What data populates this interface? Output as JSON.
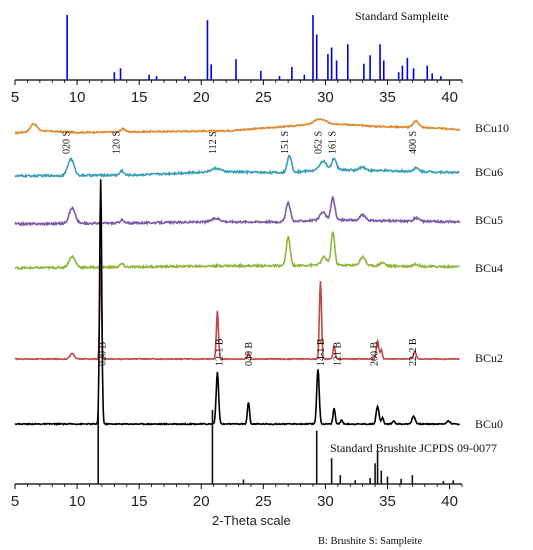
{
  "chart_data": {
    "type": "line",
    "xlabel": "2-Theta scale",
    "xlim": [
      5,
      41
    ],
    "ticks": [
      5,
      10,
      15,
      20,
      25,
      30,
      35,
      40
    ],
    "note": "B: Brushite S: Sampleite",
    "references": [
      {
        "name": "Standard Sampleite",
        "color": "#0000dd",
        "peaks": [
          {
            "x": 9.2,
            "h": 1.0
          },
          {
            "x": 13.0,
            "h": 0.12
          },
          {
            "x": 13.5,
            "h": 0.18
          },
          {
            "x": 15.8,
            "h": 0.08
          },
          {
            "x": 16.4,
            "h": 0.06
          },
          {
            "x": 18.7,
            "h": 0.06
          },
          {
            "x": 20.5,
            "h": 0.92
          },
          {
            "x": 20.8,
            "h": 0.24
          },
          {
            "x": 22.8,
            "h": 0.32
          },
          {
            "x": 24.8,
            "h": 0.14
          },
          {
            "x": 26.3,
            "h": 0.06
          },
          {
            "x": 27.3,
            "h": 0.2
          },
          {
            "x": 28.3,
            "h": 0.08
          },
          {
            "x": 29.0,
            "h": 1.0
          },
          {
            "x": 29.3,
            "h": 0.7
          },
          {
            "x": 30.2,
            "h": 0.4
          },
          {
            "x": 30.5,
            "h": 0.5
          },
          {
            "x": 30.9,
            "h": 0.3
          },
          {
            "x": 31.8,
            "h": 0.55
          },
          {
            "x": 33.1,
            "h": 0.25
          },
          {
            "x": 33.6,
            "h": 0.38
          },
          {
            "x": 34.4,
            "h": 0.55
          },
          {
            "x": 34.7,
            "h": 0.3
          },
          {
            "x": 35.9,
            "h": 0.12
          },
          {
            "x": 36.2,
            "h": 0.22
          },
          {
            "x": 36.6,
            "h": 0.34
          },
          {
            "x": 37.1,
            "h": 0.18
          },
          {
            "x": 38.2,
            "h": 0.22
          },
          {
            "x": 38.6,
            "h": 0.1
          },
          {
            "x": 39.3,
            "h": 0.06
          }
        ]
      },
      {
        "name": "Standard Brushite JCPDS 09-0077",
        "color": "#111111",
        "peaks": [
          {
            "x": 11.7,
            "h": 1.0
          },
          {
            "x": 20.9,
            "h": 1.0
          },
          {
            "x": 23.4,
            "h": 0.06
          },
          {
            "x": 29.3,
            "h": 0.72
          },
          {
            "x": 30.5,
            "h": 0.35
          },
          {
            "x": 31.2,
            "h": 0.12
          },
          {
            "x": 32.4,
            "h": 0.05
          },
          {
            "x": 33.6,
            "h": 0.08
          },
          {
            "x": 34.0,
            "h": 0.28
          },
          {
            "x": 34.2,
            "h": 0.45
          },
          {
            "x": 34.5,
            "h": 0.18
          },
          {
            "x": 35.0,
            "h": 0.1
          },
          {
            "x": 36.1,
            "h": 0.07
          },
          {
            "x": 37.0,
            "h": 0.12
          },
          {
            "x": 39.5,
            "h": 0.04
          },
          {
            "x": 40.3,
            "h": 0.05
          }
        ]
      }
    ],
    "series": [
      {
        "name": "BCu10",
        "color": "#e3882e",
        "noise": 0.6,
        "background": [
          [
            5,
            0
          ],
          [
            7,
            2
          ],
          [
            10,
            0.5
          ],
          [
            22,
            2
          ],
          [
            27,
            6
          ],
          [
            30,
            9
          ],
          [
            34,
            6
          ],
          [
            38,
            5
          ],
          [
            41,
            3
          ]
        ],
        "peaks": [
          {
            "x": 6.5,
            "h": 7,
            "w": 0.35
          },
          {
            "x": 13.7,
            "h": 3,
            "w": 0.25
          },
          {
            "x": 29.5,
            "h": 4,
            "w": 0.6
          },
          {
            "x": 37.3,
            "h": 6,
            "w": 0.3
          }
        ]
      },
      {
        "name": "BCu6",
        "color": "#3a9eb8",
        "noise": 0.9,
        "background": [
          [
            5,
            0
          ],
          [
            15,
            1
          ],
          [
            21,
            4
          ],
          [
            27,
            3
          ],
          [
            30,
            6
          ],
          [
            34,
            5
          ],
          [
            38,
            4
          ],
          [
            41,
            3
          ]
        ],
        "peaks": [
          {
            "x": 9.5,
            "h": 15,
            "w": 0.35
          },
          {
            "x": 13.6,
            "h": 4,
            "w": 0.2
          },
          {
            "x": 21.2,
            "h": 3,
            "w": 0.5
          },
          {
            "x": 27.1,
            "h": 15,
            "w": 0.25
          },
          {
            "x": 29.8,
            "h": 8,
            "w": 0.35
          },
          {
            "x": 30.7,
            "h": 10,
            "w": 0.25
          },
          {
            "x": 33.0,
            "h": 3,
            "w": 0.3
          },
          {
            "x": 37.3,
            "h": 3,
            "w": 0.3
          }
        ],
        "annotations": [
          {
            "text": "020 S",
            "x": 9.4
          },
          {
            "text": "120 S",
            "x": 13.4
          },
          {
            "text": "112 S",
            "x": 21.2
          },
          {
            "text": "151 S",
            "x": 27.0
          },
          {
            "text": "052 S",
            "x": 29.7
          },
          {
            "text": "161 S",
            "x": 30.8
          },
          {
            "text": "400 S",
            "x": 37.3
          }
        ]
      },
      {
        "name": "BCu5",
        "color": "#7b5aa6",
        "noise": 0.9,
        "background": [
          [
            5,
            0
          ],
          [
            15,
            1
          ],
          [
            21,
            2
          ],
          [
            27,
            2
          ],
          [
            30,
            4
          ],
          [
            34,
            3
          ],
          [
            41,
            2
          ]
        ],
        "peaks": [
          {
            "x": 9.6,
            "h": 14,
            "w": 0.35
          },
          {
            "x": 13.6,
            "h": 3,
            "w": 0.2
          },
          {
            "x": 21.2,
            "h": 3,
            "w": 0.5
          },
          {
            "x": 27.0,
            "h": 17,
            "w": 0.25
          },
          {
            "x": 29.8,
            "h": 7,
            "w": 0.3
          },
          {
            "x": 30.6,
            "h": 20,
            "w": 0.22
          },
          {
            "x": 33.0,
            "h": 5,
            "w": 0.3
          },
          {
            "x": 37.3,
            "h": 3,
            "w": 0.3
          }
        ]
      },
      {
        "name": "BCu4",
        "color": "#8fb53a",
        "noise": 0.9,
        "background": [
          [
            5,
            0
          ],
          [
            15,
            1
          ],
          [
            22,
            2
          ],
          [
            27,
            2
          ],
          [
            30,
            3
          ],
          [
            34,
            2
          ],
          [
            41,
            1
          ]
        ],
        "peaks": [
          {
            "x": 9.6,
            "h": 10,
            "w": 0.35
          },
          {
            "x": 13.6,
            "h": 3,
            "w": 0.2
          },
          {
            "x": 27.0,
            "h": 26,
            "w": 0.22
          },
          {
            "x": 29.9,
            "h": 7,
            "w": 0.3
          },
          {
            "x": 30.6,
            "h": 30,
            "w": 0.2
          },
          {
            "x": 33.0,
            "h": 8,
            "w": 0.3
          },
          {
            "x": 34.6,
            "h": 3,
            "w": 0.3
          },
          {
            "x": 37.3,
            "h": 2,
            "w": 0.3
          }
        ]
      },
      {
        "name": "BCu2",
        "color": "#c04a48",
        "noise": 0.7,
        "background": [
          [
            5,
            0
          ],
          [
            20,
            0
          ],
          [
            41,
            0
          ]
        ],
        "peaks": [
          {
            "x": 9.6,
            "h": 9,
            "w": 0.25
          },
          {
            "x": 11.9,
            "h": 170,
            "w": 0.1
          },
          {
            "x": 21.3,
            "h": 80,
            "w": 0.12
          },
          {
            "x": 23.8,
            "h": 10,
            "w": 0.12
          },
          {
            "x": 29.6,
            "h": 130,
            "w": 0.12
          },
          {
            "x": 30.7,
            "h": 22,
            "w": 0.12
          },
          {
            "x": 34.2,
            "h": 30,
            "w": 0.14
          },
          {
            "x": 34.5,
            "h": 15,
            "w": 0.12
          },
          {
            "x": 37.2,
            "h": 12,
            "w": 0.15
          }
        ]
      },
      {
        "name": "BCu0",
        "color": "#000000",
        "noise": 0.5,
        "background": [
          [
            5,
            0
          ],
          [
            41,
            0
          ]
        ],
        "peaks": [
          {
            "x": 11.9,
            "h": 245,
            "w": 0.12
          },
          {
            "x": 21.3,
            "h": 52,
            "w": 0.14
          },
          {
            "x": 23.8,
            "h": 22,
            "w": 0.12
          },
          {
            "x": 29.4,
            "h": 55,
            "w": 0.14
          },
          {
            "x": 30.7,
            "h": 16,
            "w": 0.12
          },
          {
            "x": 31.3,
            "h": 4,
            "w": 0.12
          },
          {
            "x": 34.2,
            "h": 18,
            "w": 0.16
          },
          {
            "x": 34.6,
            "h": 6,
            "w": 0.12
          },
          {
            "x": 35.5,
            "h": 3,
            "w": 0.15
          },
          {
            "x": 37.1,
            "h": 8,
            "w": 0.18
          },
          {
            "x": 39.9,
            "h": 3,
            "w": 0.2
          }
        ],
        "annotations": [
          {
            "text": "020 B",
            "x": 12.3
          },
          {
            "text": "12-1 B",
            "x": 21.7
          },
          {
            "text": "040 B",
            "x": 24.1
          },
          {
            "text": "14-1 B",
            "x": 29.9
          },
          {
            "text": "121 B",
            "x": 31.2
          },
          {
            "text": "200 B",
            "x": 34.2
          },
          {
            "text": "22-2 B",
            "x": 37.3
          }
        ]
      }
    ]
  }
}
